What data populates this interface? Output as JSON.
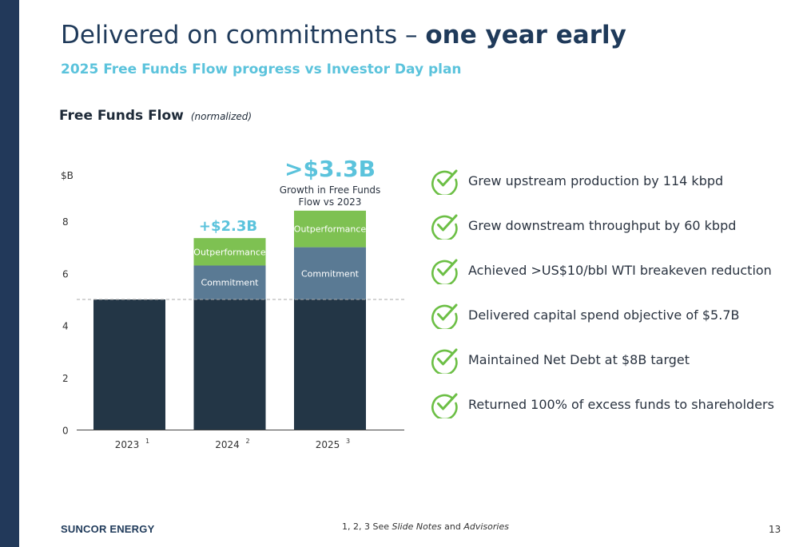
{
  "slide": {
    "title_light": "Delivered on commitments – ",
    "title_bold": "one year early",
    "subtitle": "2025 Free Funds Flow progress vs Investor Day plan",
    "chart_heading": "Free Funds Flow",
    "chart_heading_note": "(normalized)",
    "brand": "SUNCOR ENERGY",
    "footnote_prefix": "1, 2, 3 See ",
    "footnote_italic1": "Slide Notes",
    "footnote_mid": " and ",
    "footnote_italic2": "Advisories",
    "page_number": "13"
  },
  "chart_data": {
    "type": "bar",
    "stacked": true,
    "unit_label": "$B",
    "categories": [
      "2023",
      "2024",
      "2025"
    ],
    "category_footnotes": [
      "1",
      "2",
      "3"
    ],
    "series": [
      {
        "name": "Base",
        "values": [
          5.0,
          5.0,
          5.0
        ],
        "color": "#233646"
      },
      {
        "name": "Commitment",
        "values": [
          0,
          1.3,
          2.0
        ],
        "color": "#5a7a94",
        "label": "Commitment"
      },
      {
        "name": "Outperformance",
        "values": [
          0,
          1.05,
          1.4
        ],
        "color": "#7ec152",
        "label": "Outperformance"
      }
    ],
    "ylim": [
      0,
      8.6
    ],
    "yticks": [
      0,
      2,
      4,
      6,
      8
    ],
    "reference_line": 5.0,
    "annotations": [
      {
        "category": "2024",
        "text": "+$2.3B"
      },
      {
        "category": "2025",
        "text": ">$3.3B",
        "subtext_line1": "Growth in Free Funds",
        "subtext_line2": "Flow vs 2023"
      }
    ],
    "colors": {
      "accent": "#5bc3dc",
      "axis": "#444444"
    }
  },
  "checklist": [
    "Grew upstream production by 114 kbpd",
    "Grew downstream throughput by 60 kbpd",
    "Achieved >US$10/bbl WTI breakeven reduction",
    "Delivered capital spend objective of $5.7B",
    "Maintained Net Debt at $8B target",
    "Returned 100% of excess funds to shareholders"
  ],
  "check_icon": "green-checkmark-circle-icon",
  "check_color": "#6cbf45"
}
